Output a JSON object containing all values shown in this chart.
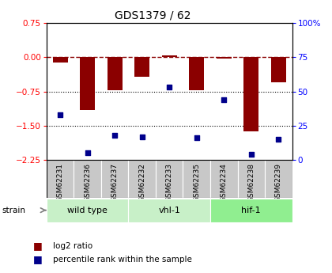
{
  "title": "GDS1379 / 62",
  "samples": [
    "GSM62231",
    "GSM62236",
    "GSM62237",
    "GSM62232",
    "GSM62233",
    "GSM62235",
    "GSM62234",
    "GSM62238",
    "GSM62239"
  ],
  "log2_ratios": [
    -0.12,
    -1.15,
    -0.72,
    -0.42,
    0.05,
    -0.72,
    -0.02,
    -1.62,
    -0.55
  ],
  "percentile_ranks": [
    33,
    5,
    18,
    17,
    53,
    16,
    44,
    4,
    15
  ],
  "group_labels": [
    "wild type",
    "vhl-1",
    "hif-1"
  ],
  "group_starts": [
    0,
    3,
    6
  ],
  "group_ends": [
    3,
    6,
    9
  ],
  "group_colors": [
    "#c8f0c8",
    "#c8f0c8",
    "#90ee90"
  ],
  "ylim_left": [
    -2.25,
    0.75
  ],
  "ylim_right": [
    0,
    100
  ],
  "yticks_left": [
    0.75,
    0,
    -0.75,
    -1.5,
    -2.25
  ],
  "yticks_right": [
    100,
    75,
    50,
    25,
    0
  ],
  "bar_color": "#8b0000",
  "dot_color": "#00008b",
  "dotted_lines": [
    -0.75,
    -1.5
  ],
  "sample_box_color": "#c8c8c8",
  "plot_bg": "#ffffff"
}
